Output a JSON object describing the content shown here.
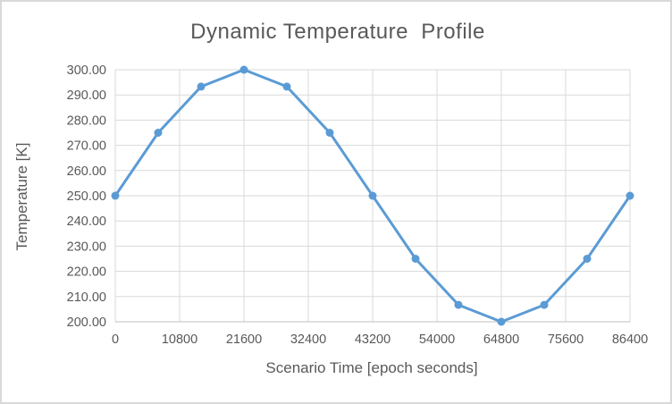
{
  "chart_data": {
    "type": "line",
    "title": "Dynamic Temperature  Profile",
    "xlabel": "Scenario Time [epoch seconds]",
    "ylabel": "Temperature [K]",
    "x": [
      0,
      7200,
      14400,
      21600,
      28800,
      36000,
      43200,
      50400,
      57600,
      64800,
      72000,
      79200,
      86400
    ],
    "values": [
      250.0,
      275.0,
      293.3,
      300.0,
      293.3,
      275.0,
      250.0,
      225.0,
      206.7,
      200.0,
      206.7,
      225.0,
      250.0
    ],
    "xlim": [
      0,
      86400
    ],
    "ylim": [
      200,
      300
    ],
    "x_tick_values": [
      0,
      10800,
      21600,
      32400,
      43200,
      54000,
      64800,
      75600,
      86400
    ],
    "x_tick_labels": [
      "0",
      "10800",
      "21600",
      "32400",
      "43200",
      "54000",
      "64800",
      "75600",
      "86400"
    ],
    "y_tick_values": [
      200,
      210,
      220,
      230,
      240,
      250,
      260,
      270,
      280,
      290,
      300
    ],
    "y_tick_labels": [
      "200.00",
      "210.00",
      "220.00",
      "230.00",
      "240.00",
      "250.00",
      "260.00",
      "270.00",
      "280.00",
      "290.00",
      "300.00"
    ],
    "grid": true,
    "legend": false,
    "marker": "circle",
    "line_width": 3,
    "marker_radius": 4.5,
    "colors": {
      "line": "#5b9bd5",
      "grid": "#d9d9d9",
      "axis": "#bfbfbf",
      "text": "#595959",
      "title": "#595959",
      "frame_border": "#d9d9d9",
      "background": "#ffffff"
    }
  }
}
